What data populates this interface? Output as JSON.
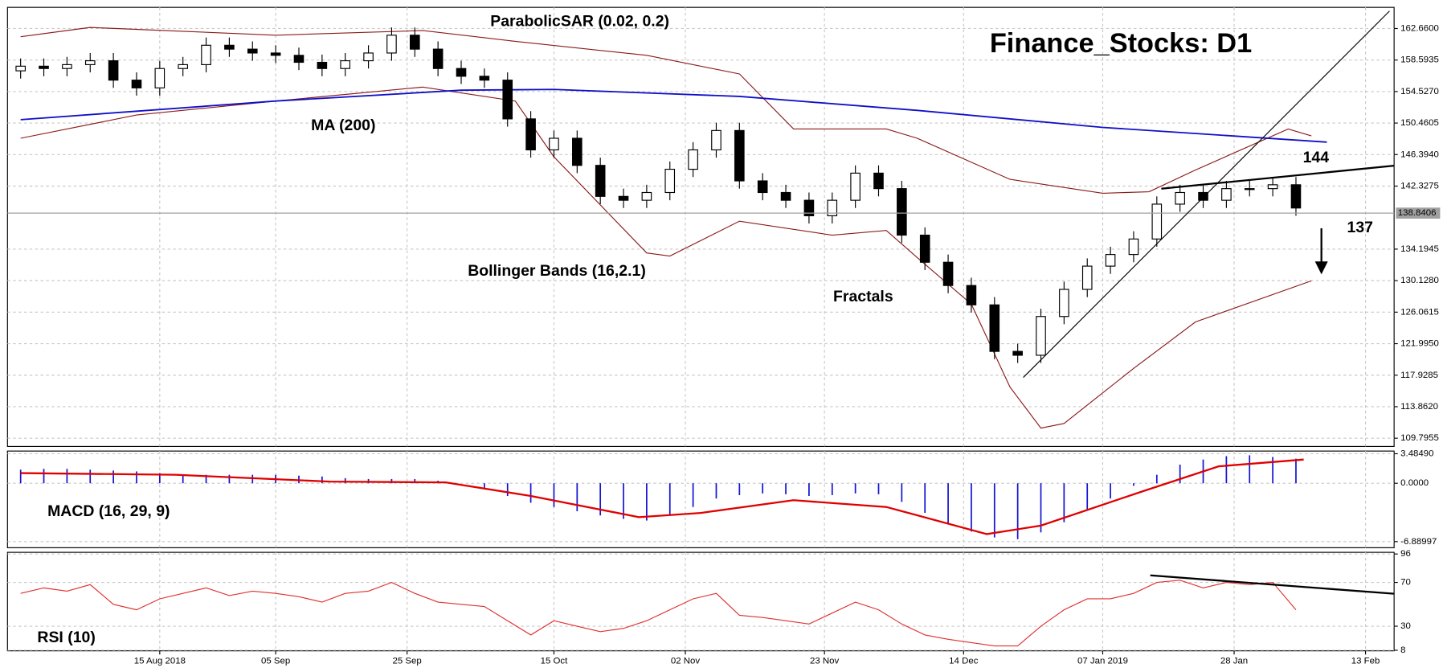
{
  "chart_data": [
    {
      "type": "candlestick",
      "title": "Finance_Stocks: D1",
      "x": [
        0,
        3,
        6,
        9,
        12,
        15,
        18,
        21,
        24,
        27,
        30,
        33,
        36,
        39,
        42,
        45,
        48,
        51,
        54,
        57,
        60,
        63,
        66,
        69,
        72,
        75,
        78,
        81,
        84,
        87,
        90,
        93,
        96,
        99,
        102,
        105,
        108,
        111,
        114,
        117,
        120,
        123,
        126,
        129,
        132,
        135,
        138,
        141,
        144,
        147,
        150,
        153,
        156,
        159,
        162,
        165
      ],
      "open": [
        157.2,
        157.8,
        157.5,
        158.0,
        158.5,
        156.0,
        155.0,
        157.5,
        158.0,
        160.5,
        160.0,
        159.5,
        159.2,
        158.3,
        157.5,
        158.5,
        159.5,
        161.8,
        160.0,
        157.5,
        156.5,
        156.0,
        151.0,
        147.0,
        148.5,
        145.0,
        141.0,
        140.5,
        141.5,
        144.5,
        147.0,
        149.5,
        143.0,
        141.5,
        140.5,
        138.5,
        140.5,
        144.0,
        142.0,
        136.0,
        132.5,
        129.5,
        127.0,
        121.0,
        120.5,
        125.5,
        129.0,
        132.0,
        133.5,
        135.5,
        140.0,
        141.5,
        140.5,
        142.0,
        142.0,
        142.5
      ],
      "high": [
        158.8,
        158.8,
        159.0,
        159.5,
        159.5,
        157.0,
        158.5,
        159.0,
        161.5,
        161.5,
        161.0,
        160.5,
        160.2,
        159.3,
        159.5,
        160.5,
        162.8,
        162.8,
        161.0,
        158.5,
        157.5,
        157.0,
        152.0,
        149.5,
        149.5,
        146.0,
        142.0,
        142.5,
        145.5,
        148.0,
        150.5,
        150.5,
        144.0,
        142.5,
        141.5,
        141.5,
        145.0,
        145.0,
        143.0,
        137.0,
        133.5,
        130.5,
        128.0,
        122.0,
        126.5,
        130.0,
        133.0,
        134.5,
        136.5,
        141.0,
        142.5,
        142.5,
        143.0,
        143.0,
        143.5,
        143.5
      ],
      "low": [
        156.2,
        156.5,
        156.5,
        157.0,
        155.0,
        154.0,
        154.0,
        156.5,
        157.0,
        159.0,
        158.5,
        158.2,
        157.3,
        156.5,
        156.5,
        157.5,
        158.5,
        159.0,
        156.5,
        155.5,
        155.0,
        150.0,
        146.0,
        146.0,
        144.0,
        140.0,
        139.5,
        139.5,
        140.5,
        143.5,
        146.0,
        142.0,
        140.5,
        139.5,
        137.5,
        137.5,
        139.5,
        141.0,
        135.0,
        131.5,
        128.5,
        126.0,
        120.0,
        119.5,
        119.5,
        124.5,
        128.0,
        131.0,
        132.5,
        134.5,
        139.0,
        139.5,
        139.5,
        141.0,
        141.0,
        138.5
      ],
      "close": [
        157.8,
        157.5,
        158.0,
        158.5,
        156.0,
        155.0,
        157.5,
        158.0,
        160.5,
        160.0,
        159.5,
        159.2,
        158.3,
        157.5,
        158.5,
        159.5,
        161.8,
        160.0,
        157.5,
        156.5,
        156.0,
        151.0,
        147.0,
        148.5,
        145.0,
        141.0,
        140.5,
        141.5,
        144.5,
        147.0,
        149.5,
        143.0,
        141.5,
        140.5,
        138.5,
        140.5,
        144.0,
        142.0,
        136.0,
        132.5,
        129.5,
        127.0,
        121.0,
        120.5,
        125.5,
        129.0,
        132.0,
        133.5,
        135.5,
        140.0,
        141.5,
        140.5,
        142.0,
        142.0,
        142.5,
        139.5
      ],
      "xlim": [
        -1.7,
        177.7
      ],
      "ylim": [
        108.73,
        165.39
      ],
      "yticks": [
        {
          "value": 162.66,
          "label": "162.6600"
        },
        {
          "value": 158.5935,
          "label": "158.5935"
        },
        {
          "value": 154.527,
          "label": "154.5270"
        },
        {
          "value": 150.4605,
          "label": "150.4605"
        },
        {
          "value": 146.394,
          "label": "146.3940"
        },
        {
          "value": 142.3275,
          "label": "142.3275"
        },
        {
          "value": 134.1945,
          "label": "134.1945"
        },
        {
          "value": 130.128,
          "label": "130.1280"
        },
        {
          "value": 126.0615,
          "label": "126.0615"
        },
        {
          "value": 121.995,
          "label": "121.9950"
        },
        {
          "value": 117.9285,
          "label": "117.9285"
        },
        {
          "value": 113.862,
          "label": "113.8620"
        },
        {
          "value": 109.7955,
          "label": "109.7955"
        }
      ],
      "current_price": {
        "value": 138.8406,
        "label": "138.8406"
      },
      "ma": {
        "name": "MA (200)",
        "color": "#1010c8",
        "x": [
          0,
          33,
          57,
          69,
          93,
          116,
          140,
          169
        ],
        "values": [
          150.9,
          153.3,
          154.7,
          154.8,
          153.9,
          152.1,
          149.9,
          148.0
        ]
      },
      "bollinger": {
        "name": "Bollinger Bands (16,2.1)",
        "color": "#8b1a1a",
        "upper": {
          "x": [
            0,
            9,
            33,
            52,
            64,
            81,
            93,
            100,
            112,
            116,
            128,
            140,
            146,
            152,
            164,
            167
          ],
          "values": [
            161.6,
            162.8,
            161.8,
            162.4,
            161.0,
            159.2,
            156.8,
            149.7,
            149.7,
            148.5,
            143.2,
            141.4,
            141.6,
            144.4,
            149.7,
            148.8
          ]
        },
        "lower": {
          "x": [
            0,
            15,
            33,
            52,
            64,
            69,
            81,
            84,
            93,
            105,
            112,
            116,
            123,
            128,
            132,
            135,
            144,
            152,
            167
          ],
          "values": [
            148.5,
            151.5,
            153.3,
            155.1,
            153.3,
            146.1,
            133.7,
            133.3,
            137.8,
            136.0,
            136.6,
            133.1,
            127.1,
            116.4,
            111.1,
            111.7,
            118.8,
            124.8,
            130.1
          ]
        }
      },
      "annotations": [
        "ParabolicSAR (0.02, 0.2)",
        "Fractals",
        "144",
        "137"
      ]
    },
    {
      "type": "macd",
      "name": "MACD (16, 29, 9)",
      "x": [
        0,
        3,
        6,
        9,
        12,
        15,
        18,
        21,
        24,
        27,
        30,
        33,
        36,
        39,
        42,
        45,
        48,
        51,
        54,
        57,
        60,
        63,
        66,
        69,
        72,
        75,
        78,
        81,
        84,
        87,
        90,
        93,
        96,
        99,
        102,
        105,
        108,
        111,
        114,
        117,
        120,
        123,
        126,
        129,
        132,
        135,
        138,
        141,
        144,
        147,
        150,
        153,
        156,
        159,
        162,
        165
      ],
      "values": [
        1.6,
        1.7,
        1.7,
        1.6,
        1.5,
        1.4,
        1.2,
        1.0,
        1.0,
        1.0,
        1.0,
        1.0,
        0.9,
        0.8,
        0.6,
        0.5,
        0.5,
        0.5,
        0.3,
        0.0,
        -0.6,
        -1.5,
        -2.3,
        -2.8,
        -3.3,
        -3.8,
        -4.2,
        -4.4,
        -3.8,
        -2.8,
        -1.8,
        -1.4,
        -1.2,
        -1.3,
        -1.5,
        -1.4,
        -1.2,
        -1.3,
        -2.2,
        -3.5,
        -4.8,
        -5.7,
        -6.4,
        -6.6,
        -5.8,
        -4.6,
        -3.2,
        -1.8,
        -0.3,
        1.0,
        2.2,
        2.8,
        3.2,
        3.3,
        3.1,
        2.9
      ],
      "color": "#1414d2",
      "signal": {
        "color": "#e00000",
        "x": [
          0,
          20,
          40,
          55,
          66,
          80,
          88,
          100,
          112,
          125,
          132,
          145,
          155,
          166
        ],
        "values": [
          1.2,
          1.0,
          0.2,
          0.1,
          -1.5,
          -4.0,
          -3.5,
          -2.0,
          -2.8,
          -6.0,
          -5.0,
          -1.0,
          2.0,
          2.8
        ]
      },
      "xlim": [
        -1.7,
        177.7
      ],
      "ylim": [
        -7.61,
        3.8
      ],
      "yticks": [
        {
          "value": 3.4849,
          "label": "3.48490"
        },
        {
          "value": 0,
          "label": "0.0000"
        },
        {
          "value": -6.88997,
          "label": "-6.88997"
        }
      ]
    },
    {
      "type": "rsi",
      "name": "RSI (10)",
      "color": "#e03030",
      "x": [
        0,
        3,
        6,
        9,
        12,
        15,
        18,
        21,
        24,
        27,
        30,
        33,
        36,
        39,
        42,
        45,
        48,
        51,
        54,
        57,
        60,
        63,
        66,
        69,
        72,
        75,
        78,
        81,
        84,
        87,
        90,
        93,
        96,
        99,
        102,
        105,
        108,
        111,
        114,
        117,
        120,
        123,
        126,
        129,
        132,
        135,
        138,
        141,
        144,
        147,
        150,
        153,
        156,
        159,
        162,
        165
      ],
      "values": [
        60,
        65,
        62,
        68,
        50,
        45,
        55,
        60,
        65,
        58,
        62,
        60,
        57,
        52,
        60,
        62,
        70,
        60,
        52,
        50,
        48,
        35,
        22,
        35,
        30,
        25,
        28,
        35,
        45,
        55,
        60,
        40,
        38,
        35,
        32,
        42,
        52,
        45,
        32,
        22,
        18,
        15,
        12,
        12,
        30,
        45,
        55,
        55,
        60,
        70,
        72,
        65,
        70,
        68,
        70,
        45
      ],
      "xlim": [
        -1.7,
        177.7
      ],
      "ylim": [
        7.5,
        97.5
      ],
      "yticks": [
        96,
        70,
        30,
        8
      ],
      "xticks": [
        {
          "value": 18,
          "label": "15 Aug 2018"
        },
        {
          "value": 33,
          "label": "05 Sep"
        },
        {
          "value": 50,
          "label": "25 Sep"
        },
        {
          "value": 69,
          "label": "15 Oct"
        },
        {
          "value": 86,
          "label": "02 Nov"
        },
        {
          "value": 104,
          "label": "23 Nov"
        },
        {
          "value": 122,
          "label": "14 Dec"
        },
        {
          "value": 140,
          "label": "07 Jan 2019"
        },
        {
          "value": 157,
          "label": "28 Jan"
        },
        {
          "value": 174,
          "label": "13 Feb"
        }
      ]
    }
  ]
}
